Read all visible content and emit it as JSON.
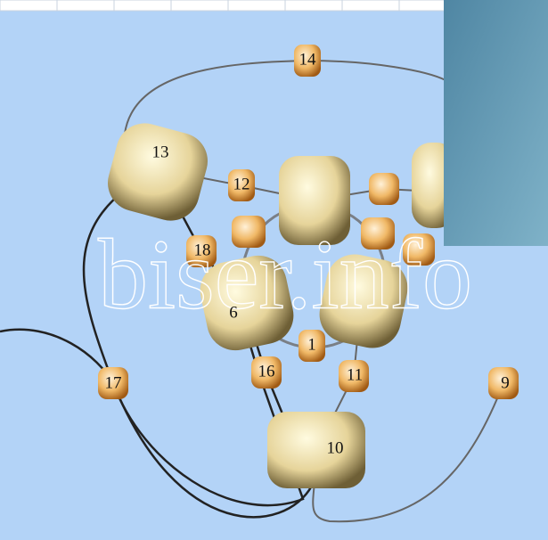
{
  "watermark": "biser.info",
  "nodes": [
    {
      "label": "14"
    },
    {
      "label": "13"
    },
    {
      "label": "12"
    },
    {
      "label": "18"
    },
    {
      "label": "6"
    },
    {
      "label": "1"
    },
    {
      "label": "16"
    },
    {
      "label": "11"
    },
    {
      "label": "17"
    },
    {
      "label": "10"
    },
    {
      "label": "9"
    }
  ]
}
